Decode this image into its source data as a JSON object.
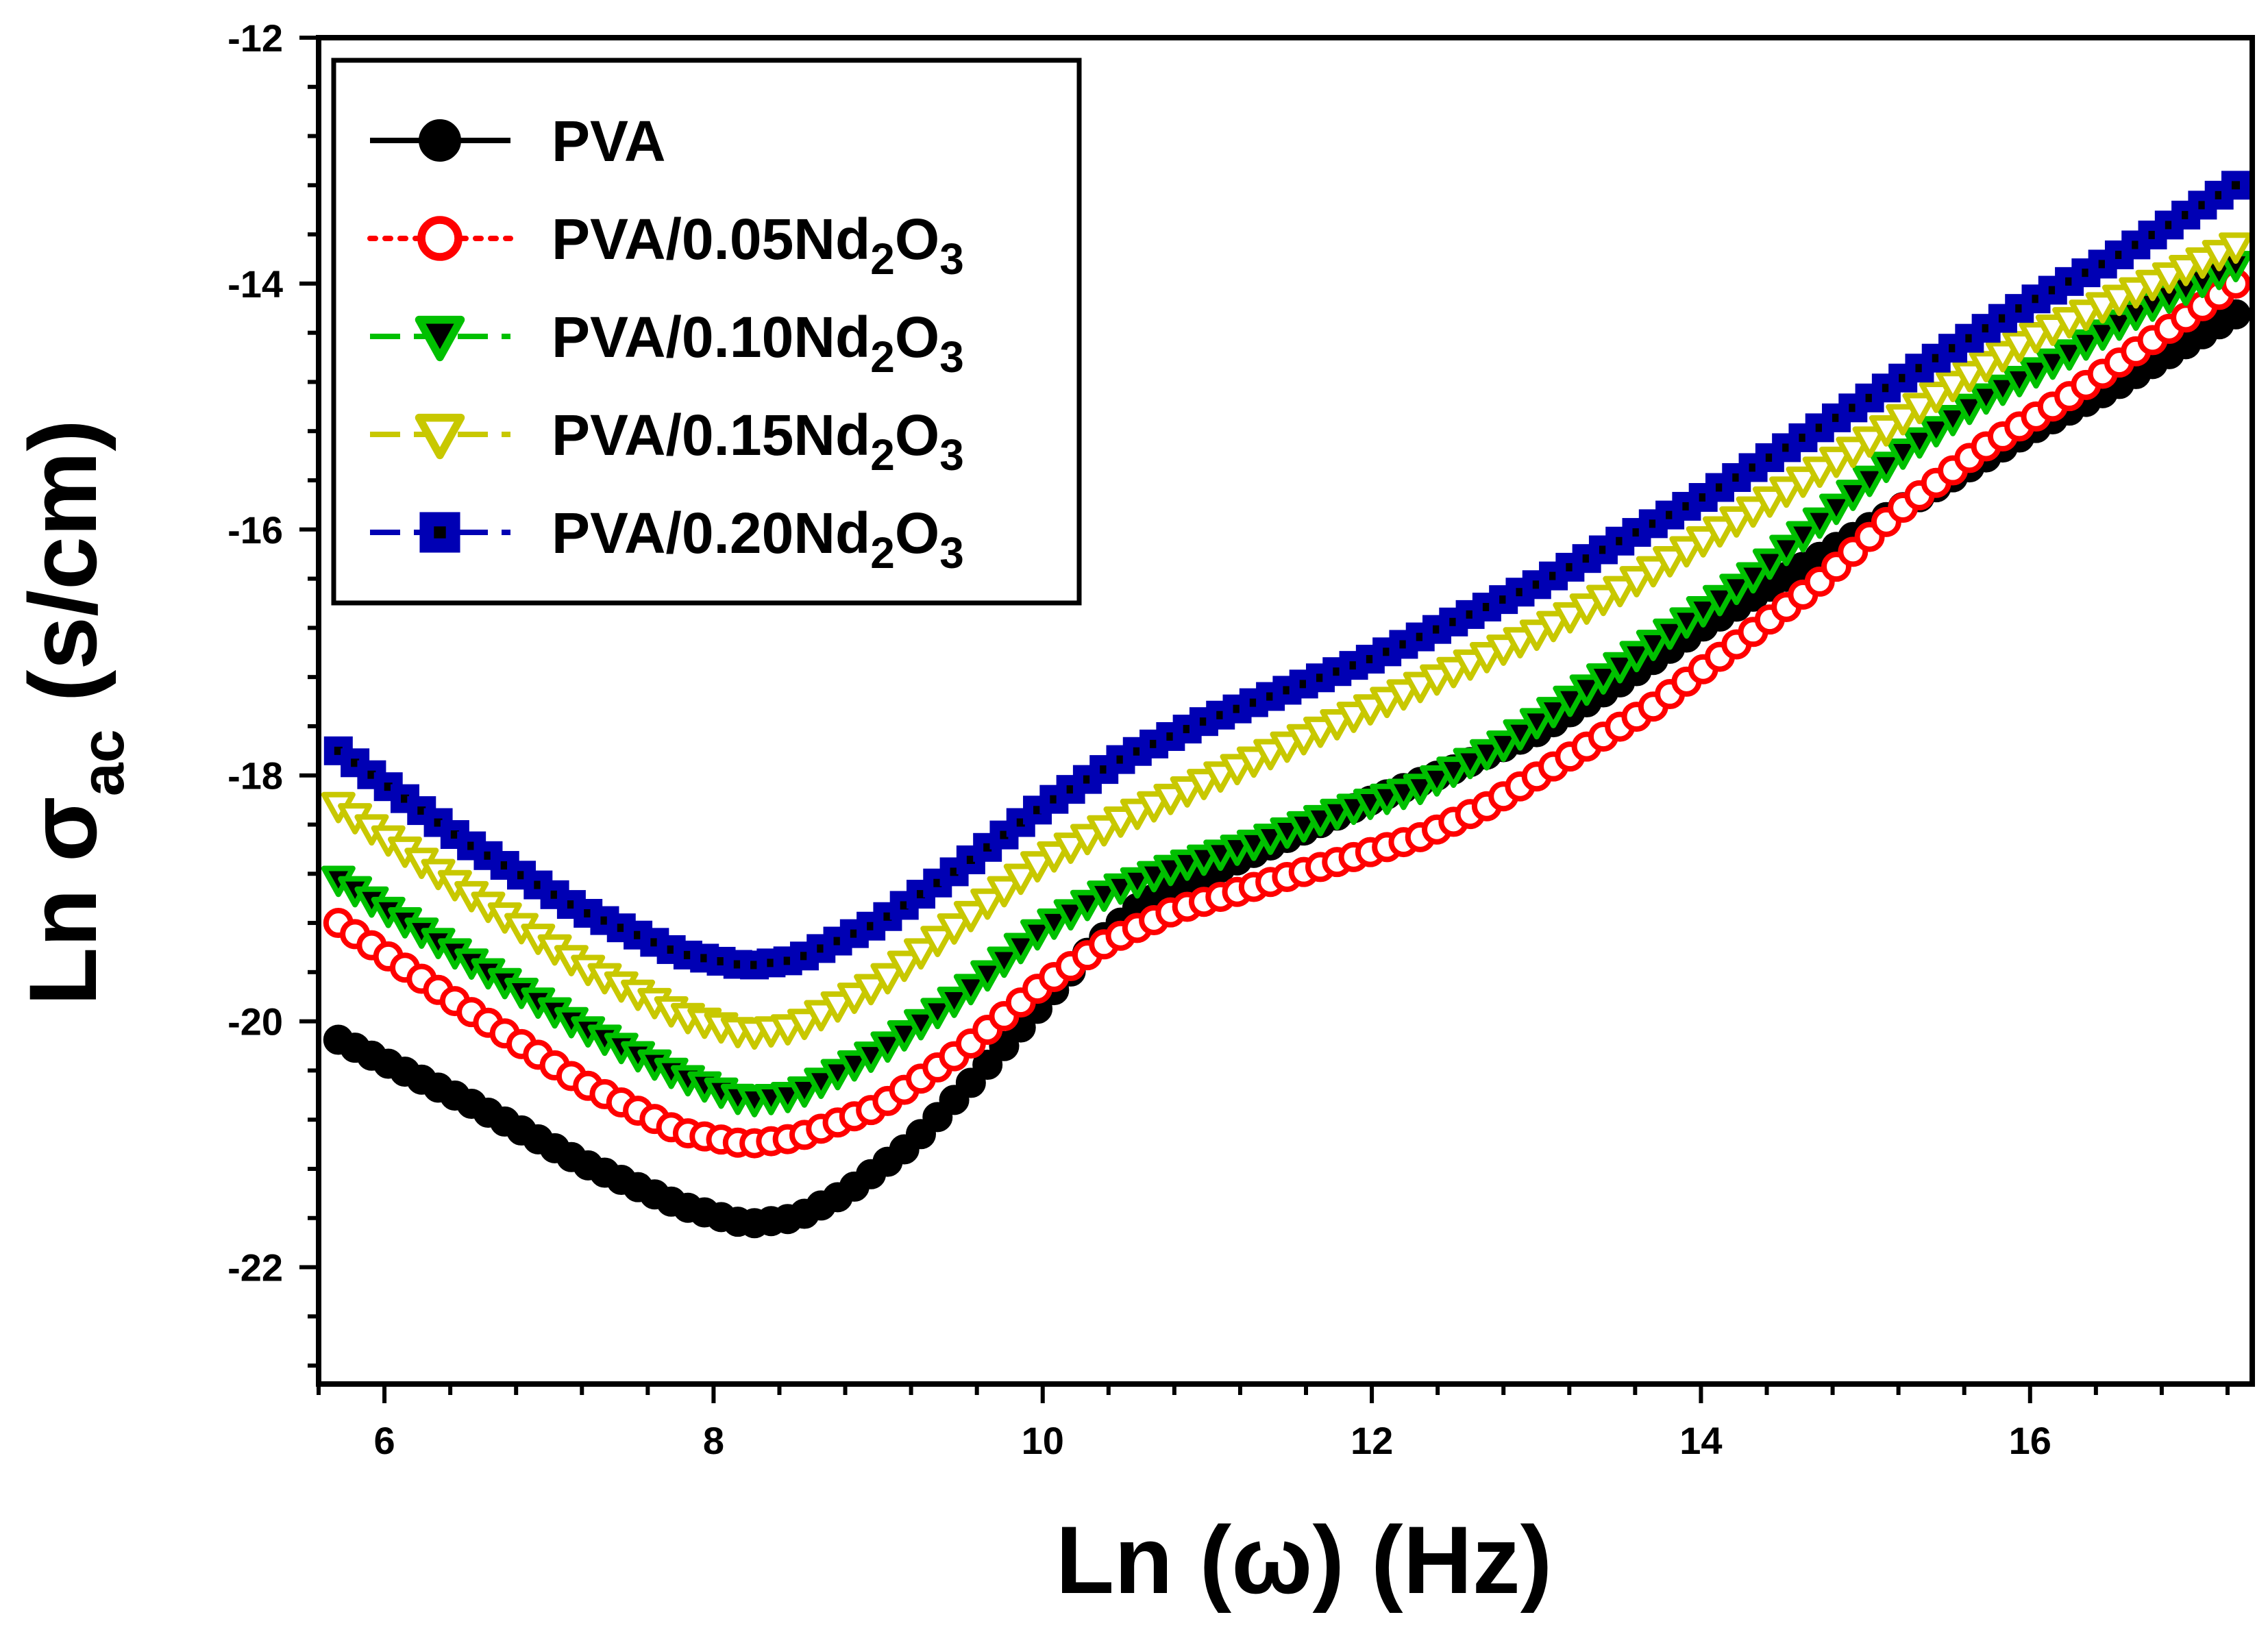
{
  "chart_data": {
    "type": "scatter",
    "title": "",
    "xlabel": "Ln (ω) (Hz)",
    "ylabel": {
      "main": "Ln σ",
      "sub": "ac",
      "unit": "(s/cm)"
    },
    "xlim": [
      5.6,
      17.35
    ],
    "ylim": [
      -22.95,
      -12
    ],
    "xticks": [
      6,
      8,
      10,
      12,
      14,
      16
    ],
    "yticks": [
      -22,
      -20,
      -18,
      -16,
      -14,
      -12
    ],
    "xtick_labels": [
      "6",
      "8",
      "10",
      "12",
      "14",
      "16"
    ],
    "ytick_labels": [
      "-22",
      "-20",
      "-18",
      "-16",
      "-14",
      "-12"
    ],
    "legend_position": "top-left",
    "x_start": 5.72,
    "x_end": 17.25,
    "n_points": 115,
    "series": [
      {
        "key": "s0",
        "name": "PVA",
        "prefix": "PVA",
        "colored": "",
        "sub1": "",
        "mid": "",
        "sub2": "",
        "color": "#000000",
        "marker": "circle-filled",
        "line": "solid",
        "anchors": [
          [
            5.72,
            -20.15
          ],
          [
            6.5,
            -20.65
          ],
          [
            7.2,
            -21.15
          ],
          [
            7.8,
            -21.5
          ],
          [
            8.2,
            -21.65
          ],
          [
            8.5,
            -21.6
          ],
          [
            8.8,
            -21.4
          ],
          [
            9.2,
            -21.0
          ],
          [
            9.6,
            -20.45
          ],
          [
            10.0,
            -19.85
          ],
          [
            10.3,
            -19.4
          ],
          [
            10.6,
            -19.05
          ],
          [
            11.0,
            -18.8
          ],
          [
            11.5,
            -18.5
          ],
          [
            12.0,
            -18.2
          ],
          [
            12.5,
            -17.95
          ],
          [
            13.0,
            -17.65
          ],
          [
            13.5,
            -17.25
          ],
          [
            14.0,
            -16.8
          ],
          [
            14.5,
            -16.4
          ],
          [
            15.0,
            -16.0
          ],
          [
            15.5,
            -15.6
          ],
          [
            16.0,
            -15.2
          ],
          [
            16.5,
            -14.85
          ],
          [
            17.0,
            -14.45
          ],
          [
            17.25,
            -14.25
          ]
        ]
      },
      {
        "key": "s1",
        "name": "PVA/0.05Nd2O3",
        "prefix": "PVA/0.05Nd",
        "colored": "",
        "sub1": "2",
        "mid": "O",
        "sub2": "3",
        "color": "#ff0000",
        "marker": "circle-open",
        "line": "dotted",
        "anchors": [
          [
            5.72,
            -19.2
          ],
          [
            6.5,
            -19.9
          ],
          [
            7.2,
            -20.5
          ],
          [
            7.8,
            -20.9
          ],
          [
            8.2,
            -21.0
          ],
          [
            8.5,
            -20.95
          ],
          [
            9.0,
            -20.7
          ],
          [
            9.5,
            -20.25
          ],
          [
            10.0,
            -19.7
          ],
          [
            10.4,
            -19.35
          ],
          [
            10.8,
            -19.1
          ],
          [
            11.3,
            -18.9
          ],
          [
            11.8,
            -18.7
          ],
          [
            12.3,
            -18.5
          ],
          [
            12.7,
            -18.25
          ],
          [
            13.2,
            -17.85
          ],
          [
            13.7,
            -17.45
          ],
          [
            14.2,
            -16.95
          ],
          [
            14.7,
            -16.45
          ],
          [
            15.2,
            -15.85
          ],
          [
            15.7,
            -15.35
          ],
          [
            16.2,
            -14.95
          ],
          [
            16.7,
            -14.5
          ],
          [
            17.25,
            -14.0
          ]
        ]
      },
      {
        "key": "s2",
        "name": "PVA/0.10Nd2O3",
        "prefix": "PVA/0.10Nd",
        "colored": "",
        "sub1": "2",
        "mid": "O",
        "sub2": "3",
        "color": "#00c000",
        "marker": "triangle-down-filled",
        "line": "dashed",
        "anchors": [
          [
            5.72,
            -18.85
          ],
          [
            6.5,
            -19.5
          ],
          [
            7.2,
            -20.05
          ],
          [
            7.8,
            -20.45
          ],
          [
            8.2,
            -20.65
          ],
          [
            8.5,
            -20.6
          ],
          [
            9.0,
            -20.25
          ],
          [
            9.5,
            -19.8
          ],
          [
            10.0,
            -19.25
          ],
          [
            10.4,
            -18.95
          ],
          [
            10.8,
            -18.75
          ],
          [
            11.3,
            -18.55
          ],
          [
            11.8,
            -18.3
          ],
          [
            12.3,
            -18.1
          ],
          [
            12.8,
            -17.75
          ],
          [
            13.3,
            -17.3
          ],
          [
            13.8,
            -16.85
          ],
          [
            14.3,
            -16.4
          ],
          [
            14.8,
            -15.85
          ],
          [
            15.2,
            -15.4
          ],
          [
            15.7,
            -14.95
          ],
          [
            16.2,
            -14.6
          ],
          [
            16.7,
            -14.2
          ],
          [
            17.25,
            -13.85
          ]
        ]
      },
      {
        "key": "s3",
        "name": "PVA/0.15Nd2O3",
        "prefix": "PVA/0.15Nd",
        "colored": "",
        "sub1": "2",
        "mid": "O",
        "sub2": "3",
        "color": "#c8c800",
        "marker": "triangle-down-open",
        "line": "dashed",
        "anchors": [
          [
            5.72,
            -18.25
          ],
          [
            6.5,
            -18.95
          ],
          [
            7.2,
            -19.55
          ],
          [
            7.8,
            -19.95
          ],
          [
            8.2,
            -20.1
          ],
          [
            8.5,
            -20.05
          ],
          [
            9.0,
            -19.7
          ],
          [
            9.5,
            -19.2
          ],
          [
            10.0,
            -18.7
          ],
          [
            10.5,
            -18.35
          ],
          [
            11.0,
            -18.05
          ],
          [
            11.5,
            -17.75
          ],
          [
            12.0,
            -17.45
          ],
          [
            12.5,
            -17.15
          ],
          [
            13.0,
            -16.85
          ],
          [
            13.5,
            -16.5
          ],
          [
            14.0,
            -16.1
          ],
          [
            14.5,
            -15.7
          ],
          [
            15.0,
            -15.3
          ],
          [
            15.5,
            -14.85
          ],
          [
            16.0,
            -14.45
          ],
          [
            16.5,
            -14.15
          ],
          [
            17.0,
            -13.85
          ],
          [
            17.25,
            -13.7
          ]
        ]
      },
      {
        "key": "s4",
        "name": "PVA/0.20Nd2O3",
        "prefix": "PVA/0.20Nd",
        "colored": "",
        "sub1": "2",
        "mid": "O",
        "sub2": "3",
        "color": "#0000b4",
        "marker": "square-dot",
        "line": "dashed",
        "anchors": [
          [
            5.72,
            -17.8
          ],
          [
            6.5,
            -18.55
          ],
          [
            7.2,
            -19.1
          ],
          [
            7.8,
            -19.45
          ],
          [
            8.2,
            -19.55
          ],
          [
            8.5,
            -19.5
          ],
          [
            9.0,
            -19.2
          ],
          [
            9.5,
            -18.75
          ],
          [
            10.0,
            -18.25
          ],
          [
            10.5,
            -17.85
          ],
          [
            11.0,
            -17.55
          ],
          [
            11.5,
            -17.3
          ],
          [
            12.0,
            -17.05
          ],
          [
            12.5,
            -16.75
          ],
          [
            13.0,
            -16.45
          ],
          [
            13.5,
            -16.1
          ],
          [
            14.0,
            -15.75
          ],
          [
            14.5,
            -15.35
          ],
          [
            15.0,
            -14.95
          ],
          [
            15.5,
            -14.55
          ],
          [
            16.0,
            -14.15
          ],
          [
            16.5,
            -13.8
          ],
          [
            17.0,
            -13.4
          ],
          [
            17.25,
            -13.2
          ]
        ]
      }
    ]
  }
}
